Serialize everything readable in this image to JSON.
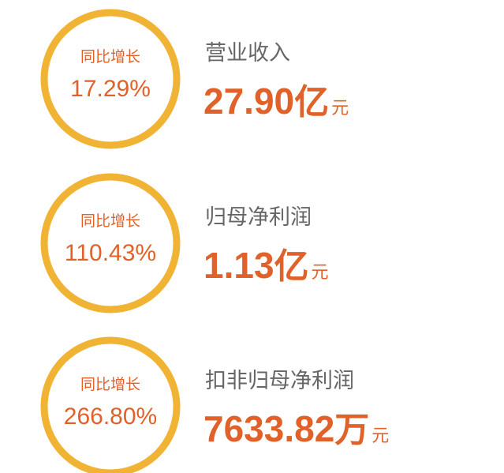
{
  "items": [
    {
      "growth_label": "同比增长",
      "growth": "17.29%",
      "metric": "营业收入",
      "value": "27.90",
      "unit": "亿",
      "currency": "元"
    },
    {
      "growth_label": "同比增长",
      "growth": "110.43%",
      "metric": "归母净利润",
      "value": "1.13",
      "unit": "亿",
      "currency": "元"
    },
    {
      "growth_label": "同比增长",
      "growth": "266.80%",
      "metric": "扣非归母净利润",
      "value": "7633.82",
      "unit": "万",
      "currency": "元"
    }
  ]
}
